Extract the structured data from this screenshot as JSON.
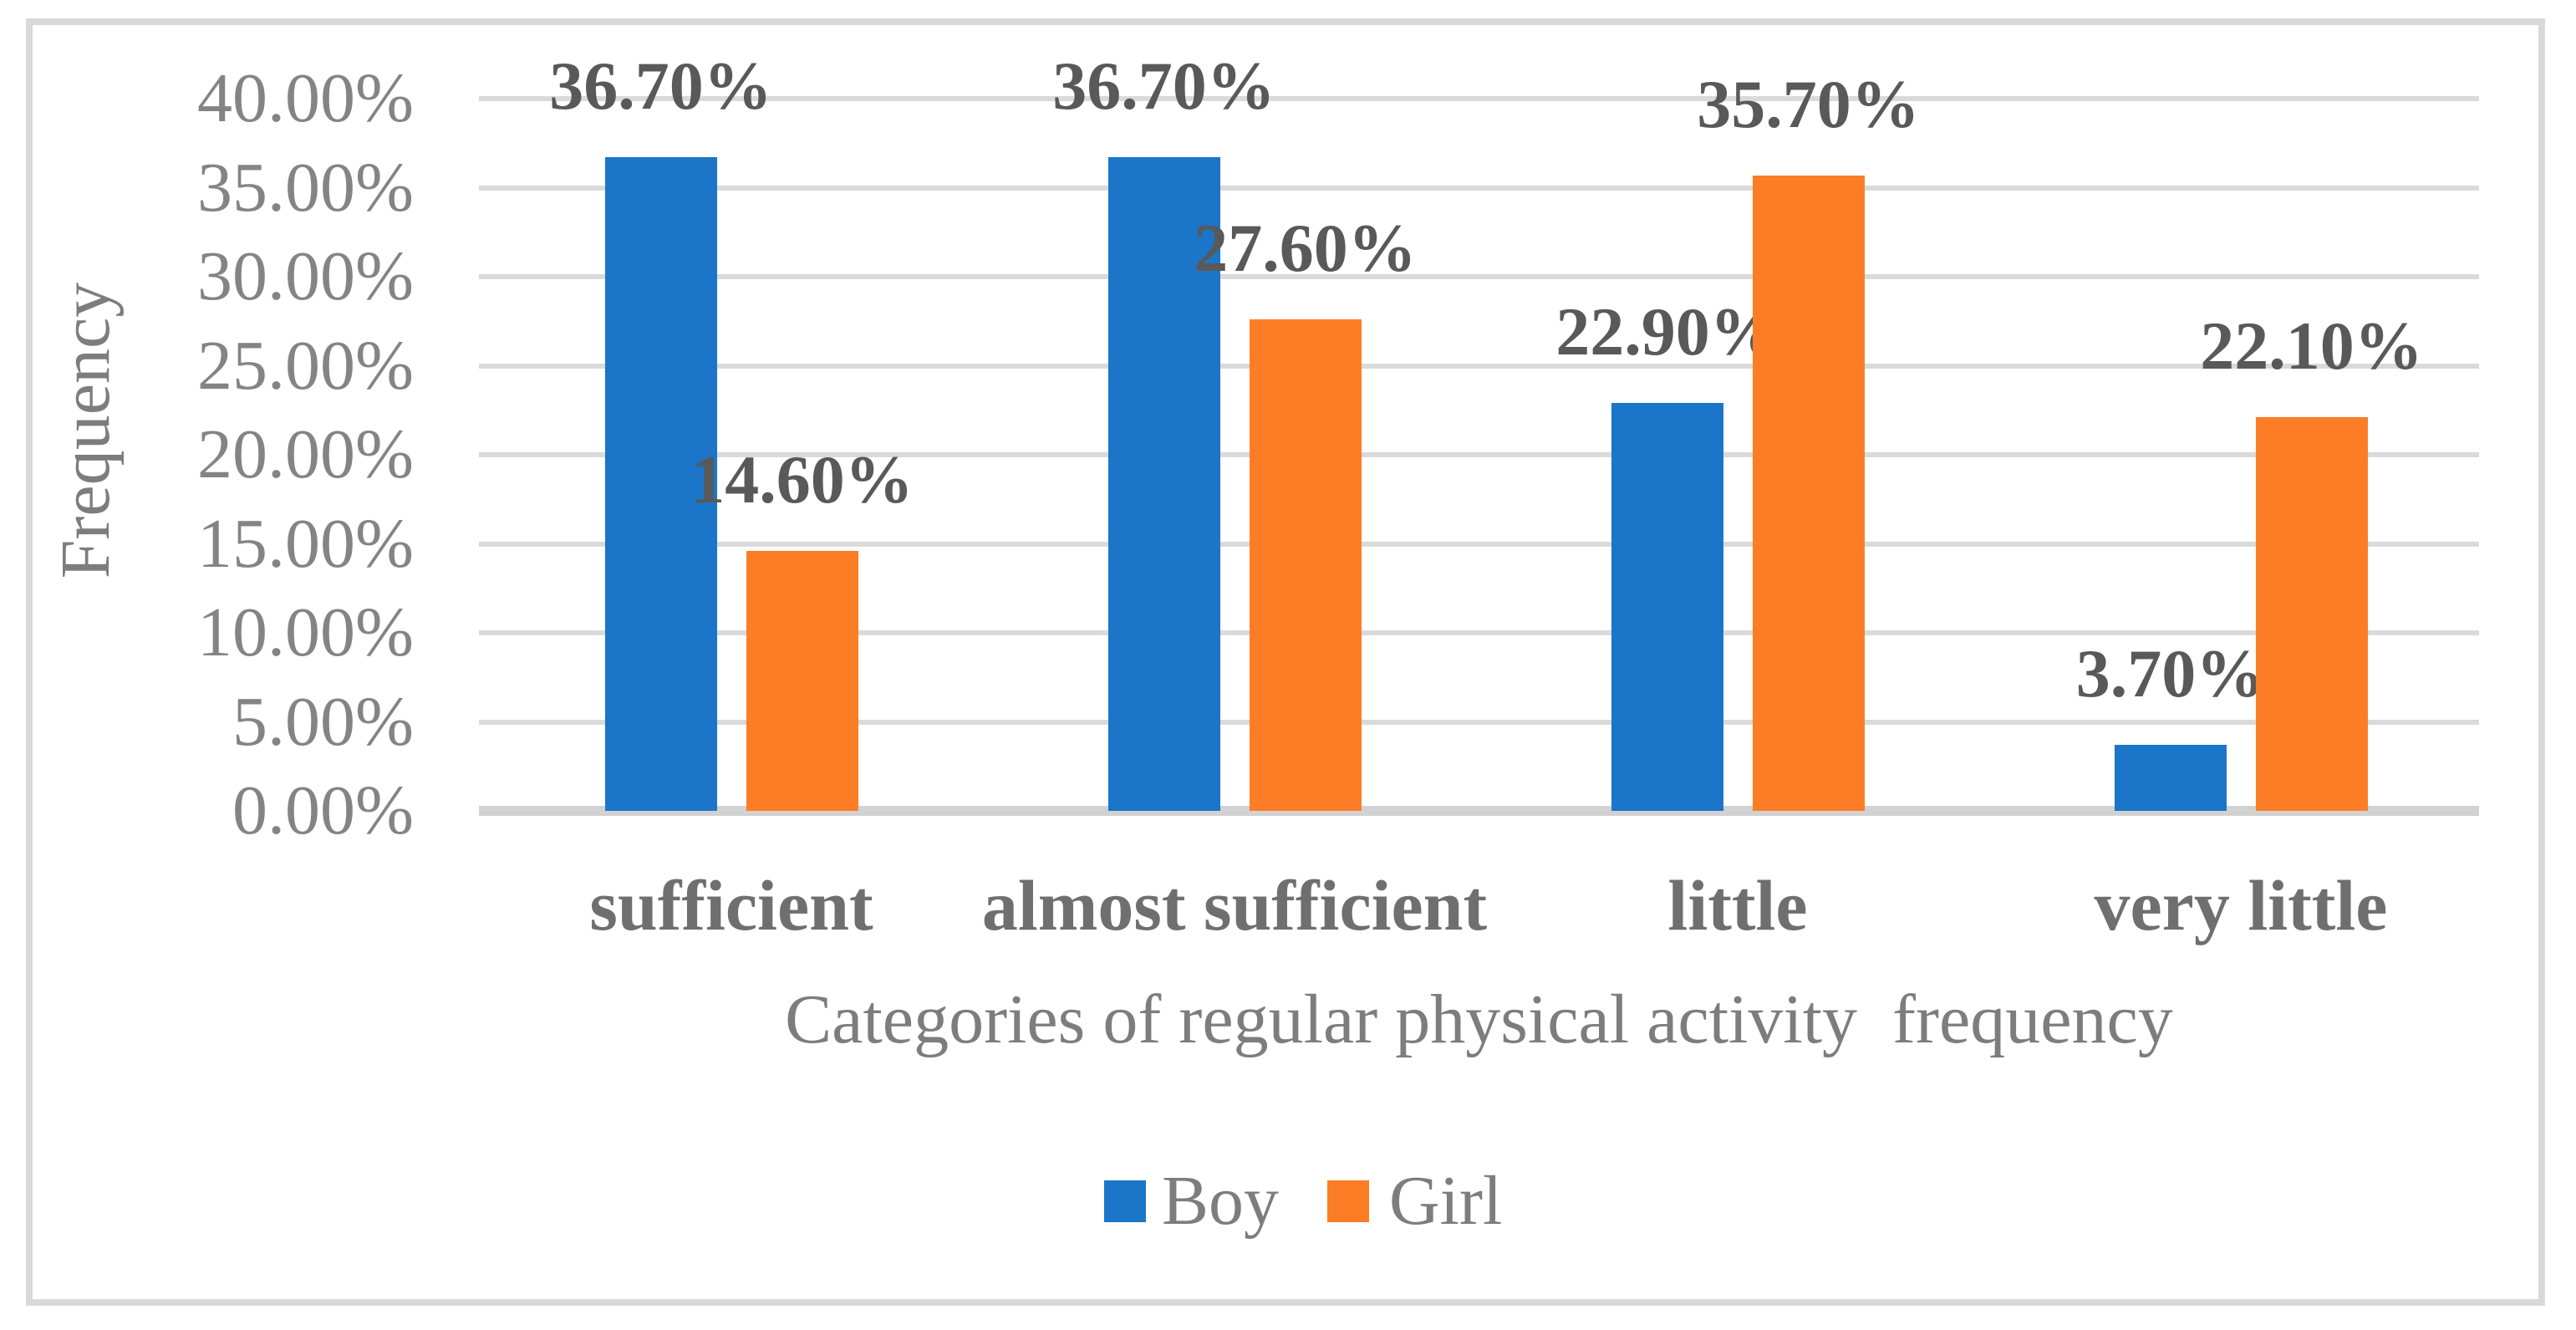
{
  "chart_data": {
    "type": "bar",
    "title": "",
    "categories": [
      "sufficient",
      "almost sufficient",
      "little",
      "very little"
    ],
    "series": [
      {
        "name": "Boy",
        "color": "#1B75C8",
        "values": [
          36.7,
          36.7,
          22.9,
          3.7
        ],
        "labels": [
          "36.70%",
          "36.70%",
          "22.90%",
          "3.70%"
        ]
      },
      {
        "name": "Girl",
        "color": "#FC7D26",
        "values": [
          14.6,
          27.6,
          35.7,
          22.1
        ],
        "labels": [
          "14.60%",
          "27.60%",
          "35.70%",
          "22.10%"
        ]
      }
    ],
    "xlabel": "Categories of regular physical activity  frequency",
    "ylabel": "Frequency",
    "ylim": [
      0,
      40
    ],
    "ytick_step": 5,
    "yticks": [
      "40.00%",
      "35.00%",
      "30.00%",
      "25.00%",
      "20.00%",
      "15.00%",
      "10.00%",
      "5.00%",
      "0.00%"
    ],
    "grid": true,
    "legend_position": "bottom-center"
  }
}
